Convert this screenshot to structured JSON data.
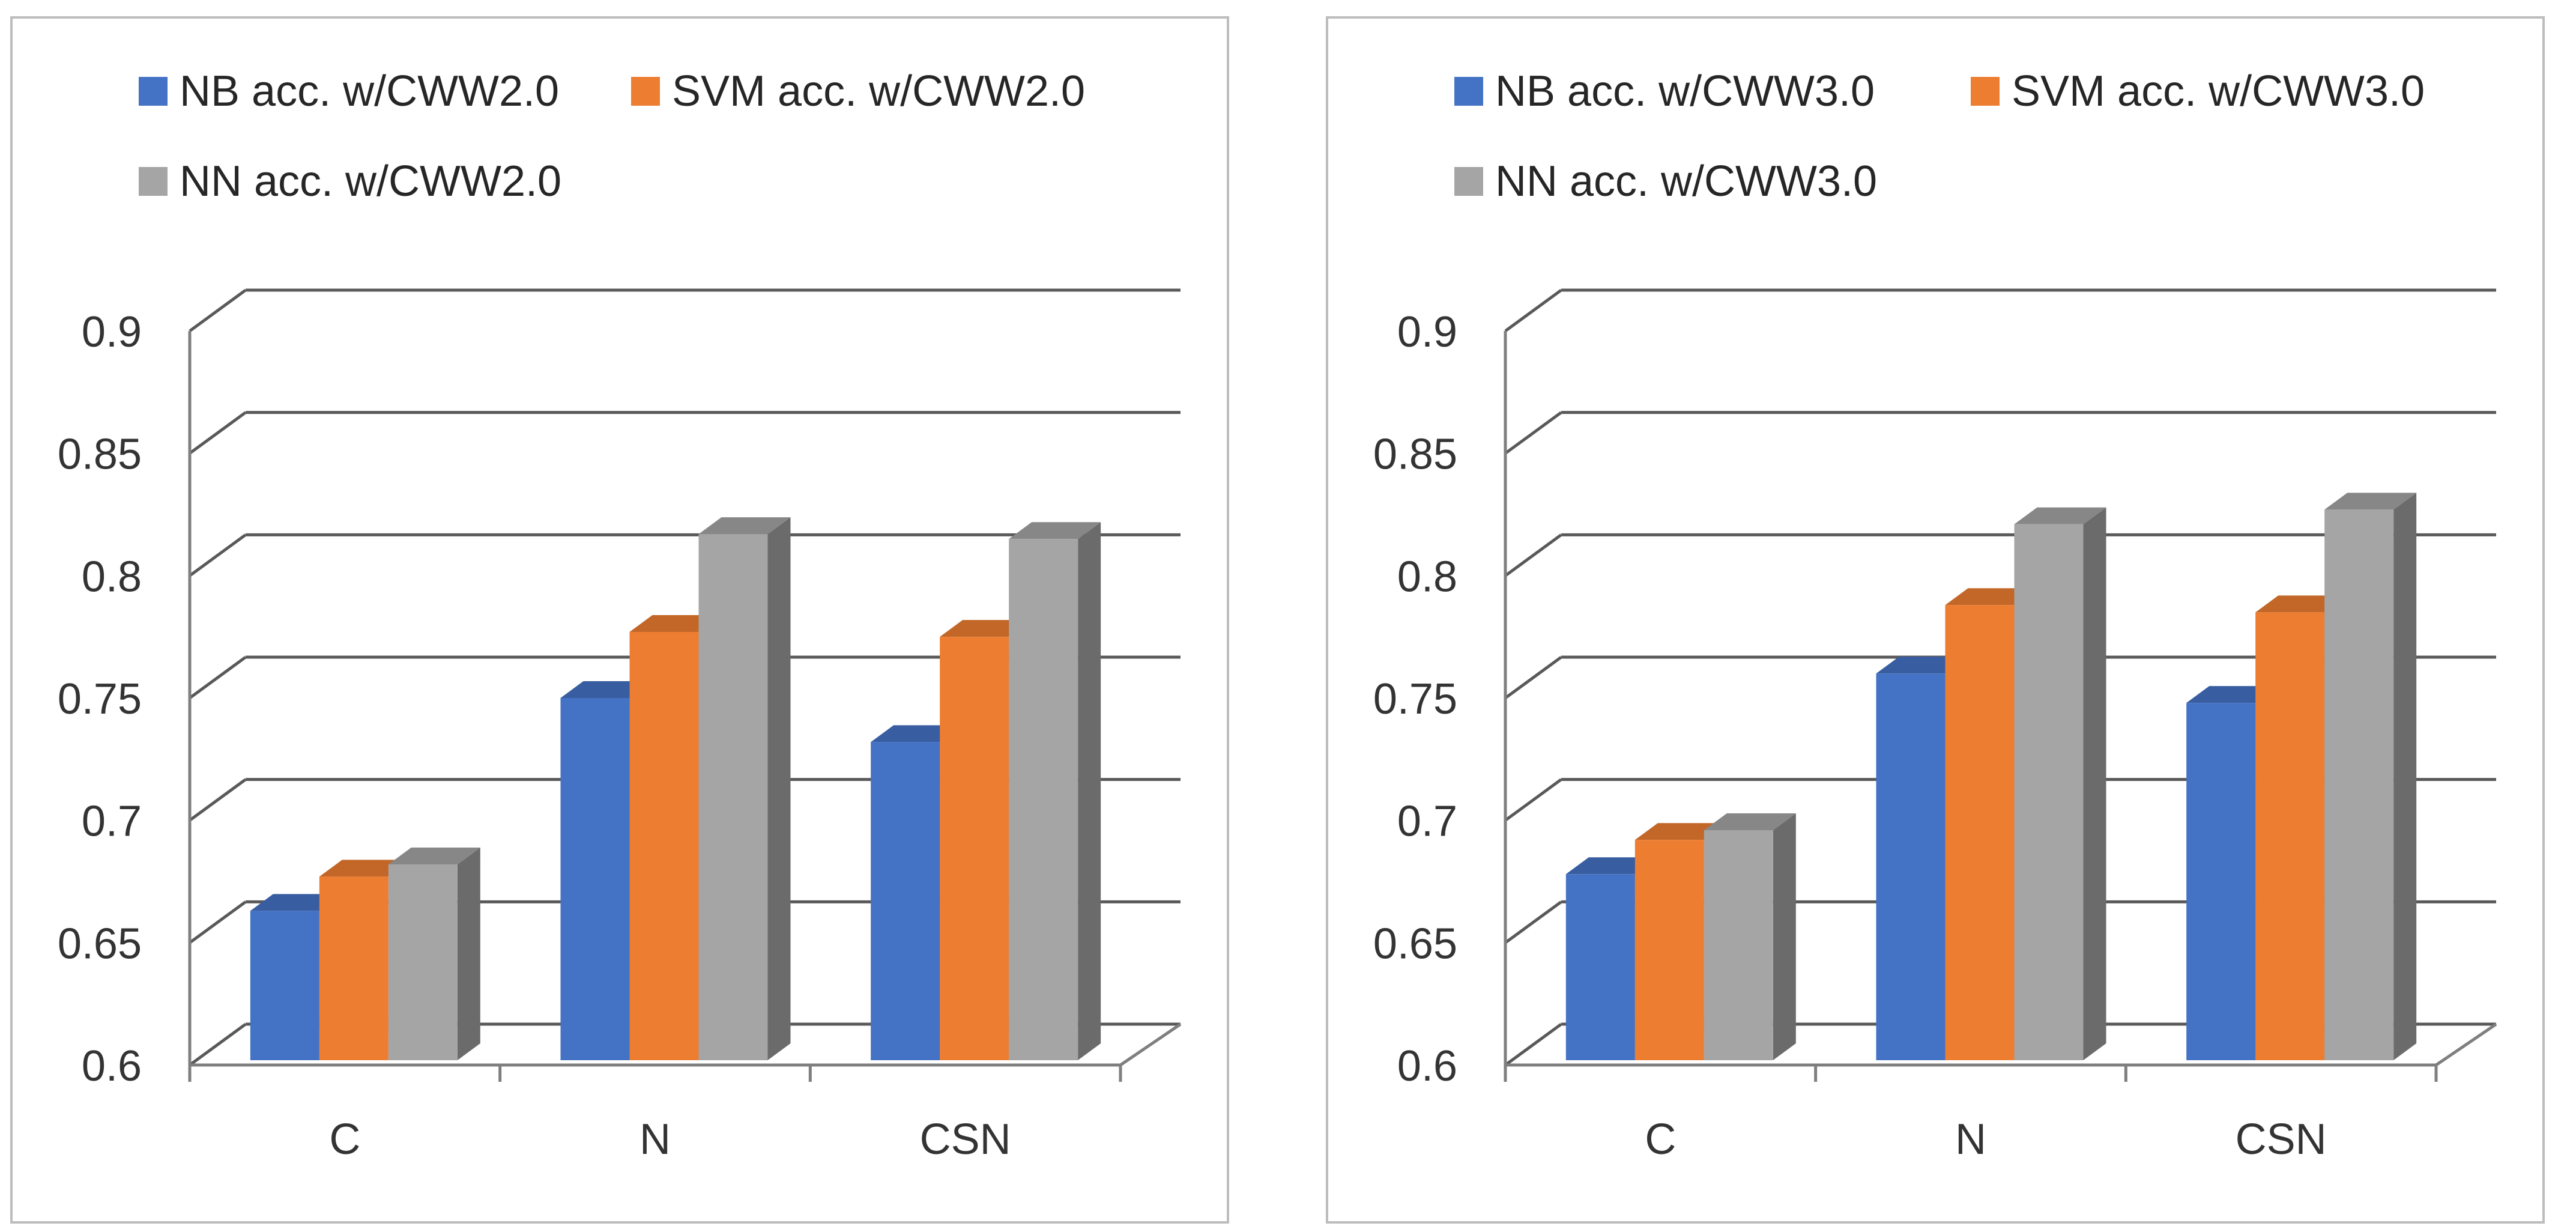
{
  "chart_data": [
    {
      "type": "bar",
      "style": "3d-clustered-column",
      "categories": [
        "C",
        "N",
        "CSN"
      ],
      "series": [
        {
          "name": "NB acc. w/CWW2.0",
          "color": "#4472c4",
          "values": [
            0.663,
            0.75,
            0.732
          ]
        },
        {
          "name": "SVM acc. w/CWW2.0",
          "color": "#ed7d31",
          "values": [
            0.677,
            0.777,
            0.775
          ]
        },
        {
          "name": "NN acc. w/CWW2.0",
          "color": "#a5a5a5",
          "values": [
            0.682,
            0.817,
            0.815
          ]
        }
      ],
      "yticks": [
        "0.6",
        "0.65",
        "0.7",
        "0.75",
        "0.8",
        "0.85",
        "0.9"
      ],
      "ylim": [
        0.6,
        0.9
      ],
      "title": "",
      "xlabel": "",
      "ylabel": "",
      "legend": "top",
      "grid": true
    },
    {
      "type": "bar",
      "style": "3d-clustered-column",
      "categories": [
        "C",
        "N",
        "CSN"
      ],
      "series": [
        {
          "name": "NB acc. w/CWW3.0",
          "color": "#4472c4",
          "values": [
            0.678,
            0.76,
            0.748
          ]
        },
        {
          "name": "SVM acc. w/CWW3.0",
          "color": "#ed7d31",
          "values": [
            0.692,
            0.788,
            0.785
          ]
        },
        {
          "name": "NN acc. w/CWW3.0",
          "color": "#a5a5a5",
          "values": [
            0.696,
            0.821,
            0.827
          ]
        }
      ],
      "yticks": [
        "0.6",
        "0.65",
        "0.7",
        "0.75",
        "0.8",
        "0.85",
        "0.9"
      ],
      "ylim": [
        0.6,
        0.9
      ],
      "title": "",
      "xlabel": "",
      "ylabel": "",
      "legend": "top",
      "grid": true
    }
  ]
}
